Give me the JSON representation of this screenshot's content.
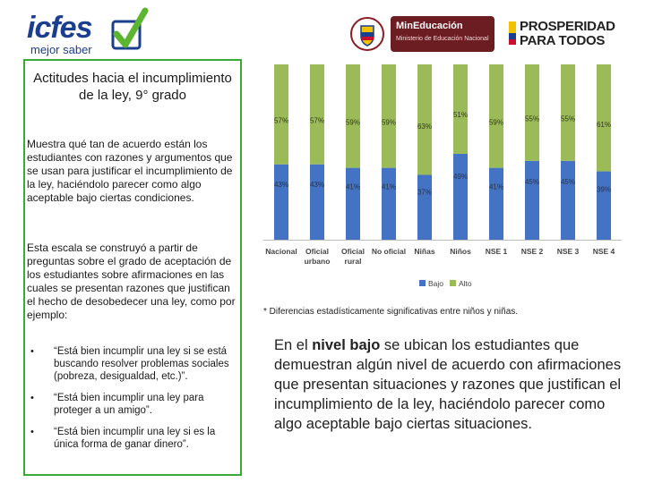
{
  "header": {
    "icfes_name": "icfes",
    "icfes_tagline": "mejor saber",
    "ministry_name": "MinEducación",
    "ministry_subtitle": "Ministerio de Educación Nacional",
    "prosperidad_line1": "PROSPERIDAD",
    "prosperidad_line2": "PARA TODOS"
  },
  "left": {
    "title": "Actitudes hacia el incumplimiento de la ley, 9° grado",
    "paragraph1": "Muestra qué tan de acuerdo están los estudiantes con razones y argumentos que se usan para justificar el incumplimiento de la ley, haciéndolo parecer como algo aceptable bajo ciertas condiciones.",
    "paragraph2": "Esta escala se construyó a partir de preguntas sobre el grado de aceptación de los estudiantes sobre afirmaciones en las cuales se presentan razones que justifican el hecho de desobedecer una ley, como por ejemplo:",
    "bullets": [
      "“Está bien incumplir una ley si se está buscando resolver problemas sociales (pobreza, desigualdad, etc.)”.",
      "“Está bien incumplir una ley para proteger a un amigo”.",
      "“Está bien incumplir una ley si es la única forma de ganar dinero”."
    ]
  },
  "chart_data": {
    "type": "bar",
    "stacked": true,
    "percent": true,
    "categories": [
      "Nacional",
      "Oficial urbano",
      "Oficial rural",
      "No oficial",
      "Niñas",
      "Niños",
      "NSE 1",
      "NSE 2",
      "NSE 3",
      "NSE 4"
    ],
    "series": [
      {
        "name": "Bajo",
        "color": "#4472c4",
        "values": [
          43,
          43,
          41,
          41,
          37,
          49,
          41,
          45,
          45,
          39
        ]
      },
      {
        "name": "Alto",
        "color": "#9bbb59",
        "values": [
          57,
          57,
          59,
          59,
          63,
          51,
          59,
          55,
          55,
          61
        ]
      }
    ],
    "ylim": [
      0,
      100
    ],
    "legend": "bottom",
    "title": "",
    "xlabel": "",
    "ylabel": ""
  },
  "chart_footnote": "* Diferencias estadísticamente significativas entre niños y niñas.",
  "right": {
    "text_before": "En el ",
    "text_bold": "nivel bajo",
    "text_after": " se ubican los estudiantes que demuestran algún nivel de acuerdo con afirmaciones que presentan situaciones y razones que justifican el incumplimiento de la ley, haciéndolo parecer como algo aceptable bajo ciertas situaciones."
  },
  "colors": {
    "box_border": "#3aaa35",
    "icfes_blue": "#1b3e8f",
    "icfes_green": "#5bb531",
    "ministry_bg": "#6b1d22"
  }
}
